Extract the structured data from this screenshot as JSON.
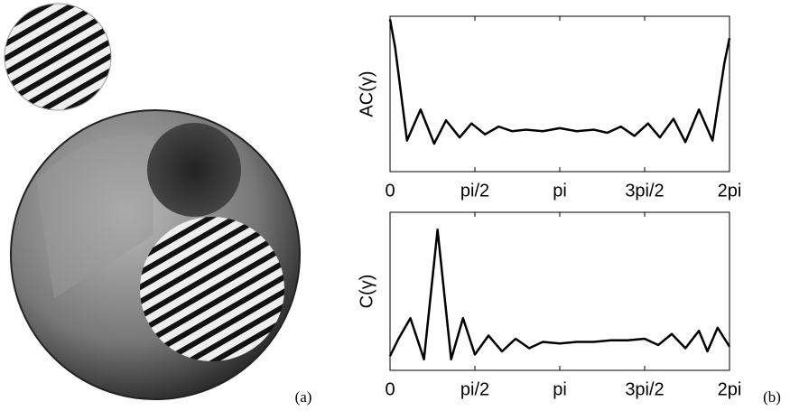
{
  "figure": {
    "panel_labels": [
      "(a)",
      "(b)"
    ]
  },
  "chart_data": [
    {
      "type": "line",
      "ylabel": "AC(γ)",
      "color": "#000000",
      "x": [
        0,
        0.03,
        0.1,
        0.18,
        0.26,
        0.33,
        0.41,
        0.48,
        0.56,
        0.64,
        0.72,
        0.8,
        0.9,
        1.0,
        1.1,
        1.2,
        1.28,
        1.36,
        1.44,
        1.52,
        1.59,
        1.67,
        1.74,
        1.82,
        1.9,
        1.97,
        2.0
      ],
      "values": [
        0.98,
        0.8,
        0.2,
        0.4,
        0.18,
        0.33,
        0.22,
        0.31,
        0.24,
        0.29,
        0.26,
        0.27,
        0.26,
        0.28,
        0.26,
        0.27,
        0.25,
        0.29,
        0.23,
        0.31,
        0.22,
        0.34,
        0.19,
        0.4,
        0.2,
        0.7,
        0.86
      ],
      "xlim": [
        0,
        2
      ],
      "ylim": [
        0,
        1
      ],
      "xticks": [
        0,
        {
          "value": 0.5,
          "label": "pi/2"
        },
        {
          "value": 1,
          "label": "pi"
        },
        {
          "value": 1.5,
          "label": "3pi/2"
        },
        {
          "value": 2,
          "label": "2pi"
        }
      ]
    },
    {
      "type": "line",
      "ylabel": "C(γ)",
      "color": "#000000",
      "x": [
        0,
        0.05,
        0.12,
        0.2,
        0.28,
        0.36,
        0.43,
        0.5,
        0.58,
        0.66,
        0.74,
        0.82,
        0.9,
        1.0,
        1.1,
        1.2,
        1.3,
        1.4,
        1.5,
        1.58,
        1.66,
        1.74,
        1.82,
        1.87,
        1.93,
        2.0
      ],
      "values": [
        0.09,
        0.2,
        0.33,
        0.07,
        0.89,
        0.07,
        0.33,
        0.1,
        0.22,
        0.12,
        0.2,
        0.14,
        0.18,
        0.17,
        0.18,
        0.18,
        0.19,
        0.19,
        0.2,
        0.16,
        0.23,
        0.14,
        0.25,
        0.12,
        0.27,
        0.15
      ],
      "xlim": [
        0,
        2
      ],
      "ylim": [
        0,
        1
      ],
      "xticks": [
        0,
        {
          "value": 0.5,
          "label": "pi/2"
        },
        {
          "value": 1,
          "label": "pi"
        },
        {
          "value": 1.5,
          "label": "3pi/2"
        },
        {
          "value": 2,
          "label": "2pi"
        }
      ]
    }
  ]
}
